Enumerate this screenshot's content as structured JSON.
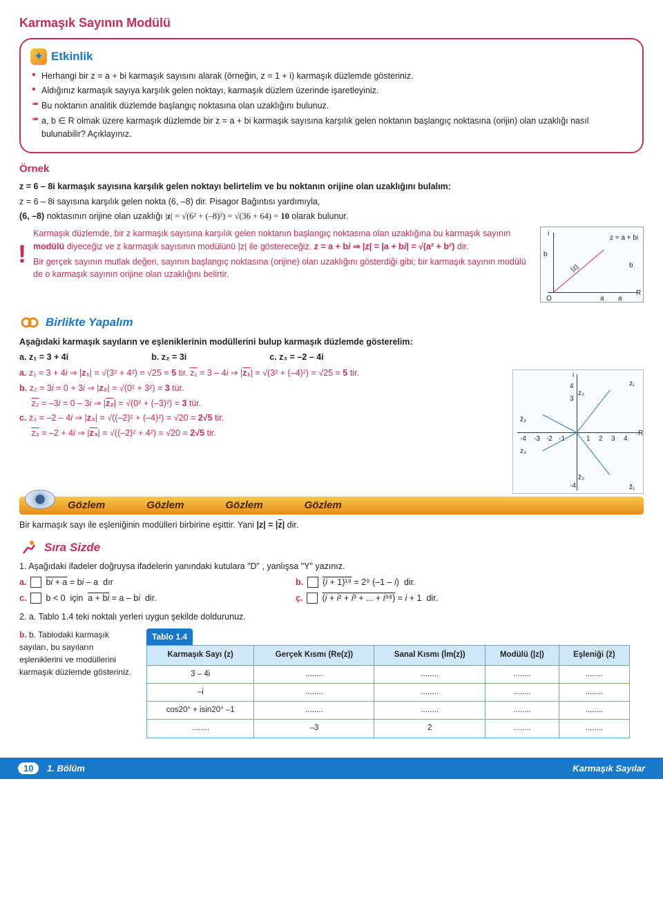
{
  "title": "Karmaşık Sayının Modülü",
  "etkinlik": {
    "heading": "Etkinlik",
    "items": [
      "Herhangi bir z = a + bi karmaşık sayısını alarak (örneğin, z = 1 + i) karmaşık düzlemde gösteriniz.",
      "Aldığınız karmaşık sayıya karşılık gelen noktayı, karmaşık düzlem üzerinde işaretleyiniz.",
      "Bu noktanın analitik düzlemde başlangıç noktasına olan uzaklığını bulunuz.",
      "a, b ∈ R olmak üzere karmaşık düzlemde bir  z = a + bi  karmaşık sayısına karşılık gelen noktanın başlangıç noktasına (orijin) olan uzaklığı nasıl bulunabilir? Açıklayınız."
    ]
  },
  "ornek_label": "Örnek",
  "ornek": {
    "line1": "z = 6 – 8i  karmaşık sayısına karşılık gelen noktayı belirtelim ve bu noktanın orijine olan uzaklığını bulalım:",
    "line2": "z = 6 – 8i  sayısına karşılık gelen nokta  (6, –8)  dir. Pisagor Bağıntısı yardımıyla,",
    "line3_a": "(6, –8)  noktasının orijine olan uzaklığı  |z| = √(6² + (–8)²) = √(36 + 64) = 10  olarak bulunur."
  },
  "important": {
    "line1": "Karmaşık düzlemde, bir  z  karmaşık sayısına karşılık gelen noktanın başlangıç noktasına olan uzaklığına bu karmaşık sayının modülü diyeceğiz ve  z  karmaşık sayısının modülünü |z| ile göstereceğiz.  z = a + bi  ⇒  |z| = |a + bi| = √(a² + b²)  dir.",
    "line2": "Bir gerçek sayının mutlak değeri, sayının başlangıç noktasına (orijine) olan uzaklığını gösterdiği gibi; bir karmaşık sayının modülü de o karmaşık sayının orijine olan uzaklığını belirtir.",
    "diag": {
      "labels": [
        "i",
        "b",
        "O",
        "a",
        "R",
        "z = a + bi",
        "|z|",
        "b",
        "a"
      ]
    }
  },
  "birlikte": {
    "heading": "Birlikte Yapalım",
    "intro": "Aşağıdaki karmaşık sayıların ve eşleniklerinin modüllerini bulup karmaşık düzlemde gösterelim:",
    "opts": {
      "a": "a. z₁ = 3 + 4i",
      "b": "b. z₂ = 3i",
      "c": "c. z₃ = –2 – 4i"
    },
    "lines": [
      "a.  z₁ = 3 + 4i  ⇒  |z₁| = √(3² + 4²) = √25 = 5  tir.   z̄₁ = 3 – 4i  ⇒  |z̄₁| = √(3² + (–4)²) = √25 = 5  tir.",
      "b.  z₂ = 3i = 0 + 3i  ⇒  |z₂| = √(0² + 3²) = 3  tür.",
      "     z̄₂ = –3i = 0 – 3i  ⇒  |z̄₂| = √(0² + (–3)²) = 3  tür.",
      "c.  z₃ = –2 – 4i  ⇒  |z₃| = √((–2)² + (–4)²) = √20 = 2√5  tir.",
      "     z̄₃ = –2 + 4i  ⇒  |z̄₃| = √((–2)² + 4²) = √20 = 2√5  tir."
    ]
  },
  "gozlem": {
    "label": "Gözlem",
    "text": "Bir karmaşık sayı ile eşleniğinin modülleri birbirine eşittir. Yani  |z| = |z̄|  dir."
  },
  "sira": {
    "heading": "Sıra Sizde",
    "q1_intro": "1. Aşağıdaki ifadeler doğruysa ifadelerin yanındaki kutulara  \"D\" , yanlışsa  \"Y\"  yazınız.",
    "a": "b̄i + a = bi – a  dır",
    "b": "(i + 1)¹⁹ = 2⁹ (–1 – i)  dir.",
    "c": "b < 0  için  ā + bi = a – bi  dir.",
    "cc": "(i + i² + i³ + ... + i⁹⁸) = i + 1  dir.",
    "q2_intro": "2. a. Tablo 1.4 teki noktalı yerleri uygun şekilde doldurunuz.",
    "q2b": "b. Tablodaki karmaşık sayıları, bu sayıların eşleniklerini ve modüllerini karmaşık düzlemde gösteriniz."
  },
  "table": {
    "title": "Tablo 1.4",
    "headers": [
      "Karmaşık Sayı (z)",
      "Gerçek Kısmı (Re(z))",
      "Sanal Kısmı (İm(z))",
      "Modülü (|z|)",
      "Eşleniği (z̄)"
    ],
    "rows": [
      [
        "3 – 4i",
        "........",
        "........",
        "........",
        "........"
      ],
      [
        "–i",
        "........",
        "........",
        "........",
        "........"
      ],
      [
        "cos20° + isin20° –1",
        "........",
        "........",
        "........",
        "........"
      ],
      [
        "........",
        "–3",
        "2",
        "........",
        "........"
      ]
    ]
  },
  "footer": {
    "page": "10",
    "left": "1. Bölüm",
    "right": "Karmaşık Sayılar"
  },
  "colors": {
    "primary_red": "#c92b57",
    "primary_blue": "#1878c9",
    "table_header": "#cfe8f9",
    "gradient_top": "#f4c94a",
    "gradient_bottom": "#e88a1a"
  }
}
